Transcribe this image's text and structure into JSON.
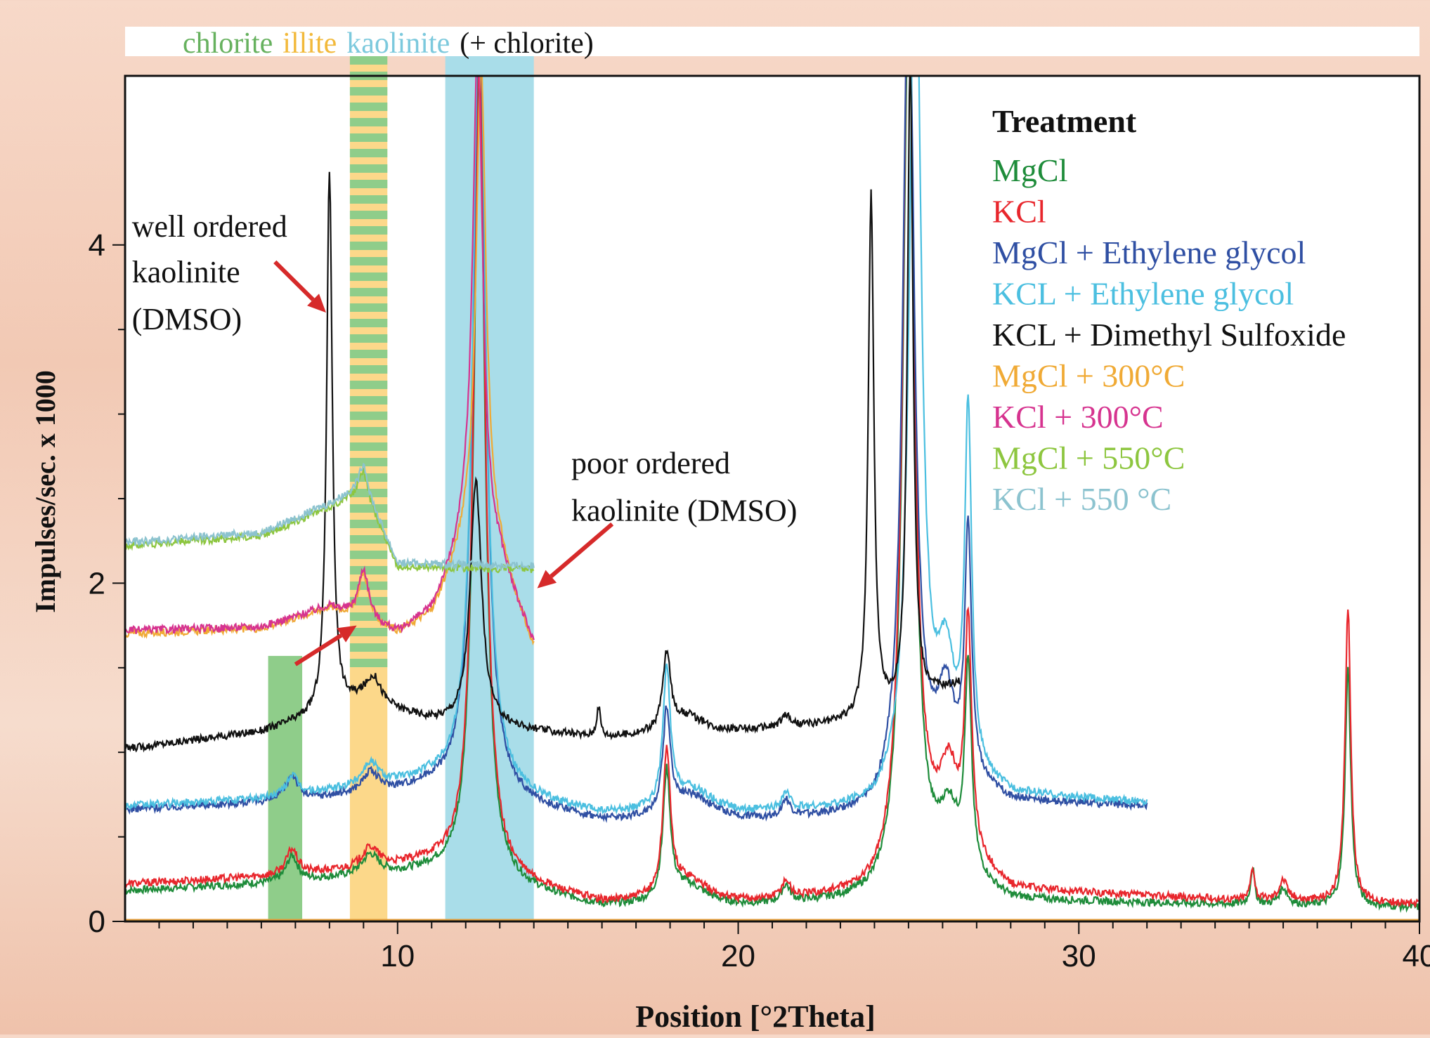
{
  "chart_data": {
    "type": "line",
    "title": "",
    "xlabel": "Position [°2Theta]",
    "ylabel": "Impulses/sec. x 1000",
    "xlim": [
      2,
      40
    ],
    "ylim": [
      0,
      5
    ],
    "x_ticks": [
      10,
      20,
      30,
      40
    ],
    "y_ticks": [
      0,
      2,
      4
    ],
    "grid": false,
    "legend_title": "Treatment",
    "legend_placement": "top-right",
    "mineral_bands": [
      {
        "name": "chlorite",
        "x_start": 6.2,
        "x_end": 7.2,
        "y_top": 1.57,
        "color": "#8fcd8a"
      },
      {
        "name": "illite",
        "x_start": 8.6,
        "x_end": 9.7,
        "y_top": 5.0,
        "color": "#fcd88a",
        "striped_with": "#8fcd8a"
      },
      {
        "name": "kaolinite",
        "x_start": 11.4,
        "x_end": 14.0,
        "y_top": 5.0,
        "color": "#a9dde9"
      }
    ],
    "header": [
      {
        "text": "chlorite",
        "color": "#66b15e"
      },
      {
        "text": "illite",
        "color": "#f2b93a"
      },
      {
        "text": "kaolinite",
        "color": "#7cc9dd"
      },
      {
        "text": "(+ chlorite)",
        "color": "#111111"
      }
    ],
    "annotations": [
      {
        "text": "well ordered",
        "x": 2.2,
        "y": 4.05
      },
      {
        "text": "kaolinite",
        "x": 2.2,
        "y": 3.78
      },
      {
        "text": "(DMSO)",
        "x": 2.2,
        "y": 3.5
      },
      {
        "text": "poor ordered",
        "x": 15.1,
        "y": 2.65
      },
      {
        "text": "kaolinite (DMSO)",
        "x": 15.1,
        "y": 2.37
      }
    ],
    "arrows": [
      {
        "from": [
          6.4,
          3.9
        ],
        "to": [
          7.9,
          3.6
        ]
      },
      {
        "from": [
          16.3,
          2.35
        ],
        "to": [
          14.1,
          1.97
        ]
      },
      {
        "from": [
          7.0,
          1.52
        ],
        "to": [
          8.8,
          1.75
        ]
      }
    ],
    "series": [
      {
        "name": "MgCl",
        "color": "#1e8c3a",
        "x_max": 40,
        "base": [
          [
            2,
            0.18
          ],
          [
            6,
            0.22
          ],
          [
            9,
            0.26
          ],
          [
            11,
            0.28
          ],
          [
            16,
            0.08
          ],
          [
            20,
            0.08
          ],
          [
            24,
            0.12
          ],
          [
            26,
            0.3
          ],
          [
            28,
            0.12
          ],
          [
            34,
            0.1
          ],
          [
            40,
            0.08
          ]
        ],
        "peaks": [
          [
            6.9,
            0.15,
            0.2
          ],
          [
            9.2,
            0.12,
            0.3
          ],
          [
            12.4,
            4.7,
            0.2
          ],
          [
            17.9,
            0.75,
            0.13
          ],
          [
            18.5,
            0.12,
            0.7
          ],
          [
            21.4,
            0.1,
            0.15
          ],
          [
            25.0,
            5.2,
            0.2
          ],
          [
            26.2,
            0.3,
            0.3
          ],
          [
            26.75,
            1.2,
            0.12
          ],
          [
            35.1,
            0.22,
            0.07
          ],
          [
            36.0,
            0.1,
            0.15
          ],
          [
            37.9,
            1.4,
            0.1
          ]
        ]
      },
      {
        "name": "KCl",
        "color": "#e8262c",
        "x_max": 40,
        "base": [
          [
            2,
            0.22
          ],
          [
            6,
            0.26
          ],
          [
            9,
            0.3
          ],
          [
            11,
            0.33
          ],
          [
            16,
            0.1
          ],
          [
            20,
            0.1
          ],
          [
            24,
            0.16
          ],
          [
            26,
            0.45
          ],
          [
            28,
            0.18
          ],
          [
            34,
            0.13
          ],
          [
            40,
            0.1
          ]
        ],
        "peaks": [
          [
            6.9,
            0.15,
            0.2
          ],
          [
            9.2,
            0.12,
            0.3
          ],
          [
            12.4,
            4.9,
            0.2
          ],
          [
            17.9,
            0.85,
            0.13
          ],
          [
            18.5,
            0.14,
            0.7
          ],
          [
            21.4,
            0.1,
            0.15
          ],
          [
            25.0,
            5.4,
            0.2
          ],
          [
            26.2,
            0.4,
            0.3
          ],
          [
            26.75,
            1.35,
            0.12
          ],
          [
            35.1,
            0.2,
            0.07
          ],
          [
            36.0,
            0.12,
            0.15
          ],
          [
            37.9,
            1.75,
            0.1
          ]
        ]
      },
      {
        "name": "MgCl + Ethylene glycol",
        "color": "#2f4fa3",
        "x_max": 32,
        "base": [
          [
            2,
            0.66
          ],
          [
            6,
            0.7
          ],
          [
            9,
            0.74
          ],
          [
            11,
            0.78
          ],
          [
            16,
            0.58
          ],
          [
            20,
            0.58
          ],
          [
            24,
            0.62
          ],
          [
            26,
            0.85
          ],
          [
            28,
            0.7
          ],
          [
            32,
            0.68
          ]
        ],
        "peaks": [
          [
            6.9,
            0.15,
            0.2
          ],
          [
            9.2,
            0.12,
            0.3
          ],
          [
            12.4,
            4.7,
            0.22
          ],
          [
            17.9,
            0.6,
            0.13
          ],
          [
            18.6,
            0.15,
            0.8
          ],
          [
            21.4,
            0.1,
            0.15
          ],
          [
            25.0,
            5.0,
            0.2
          ],
          [
            26.1,
            0.45,
            0.3
          ],
          [
            26.75,
            1.45,
            0.12
          ]
        ]
      },
      {
        "name": "KCL + Ethylene glycol",
        "color": "#4bbfe0",
        "x_max": 32,
        "base": [
          [
            2,
            0.68
          ],
          [
            6,
            0.72
          ],
          [
            9,
            0.78
          ],
          [
            11,
            0.82
          ],
          [
            16,
            0.62
          ],
          [
            20,
            0.62
          ],
          [
            24,
            0.66
          ],
          [
            26,
            0.9
          ],
          [
            28,
            0.74
          ],
          [
            32,
            0.7
          ]
        ],
        "peaks": [
          [
            6.9,
            0.12,
            0.2
          ],
          [
            9.2,
            0.14,
            0.3
          ],
          [
            12.4,
            4.8,
            0.22
          ],
          [
            17.9,
            0.8,
            0.13
          ],
          [
            18.6,
            0.15,
            0.8
          ],
          [
            21.4,
            0.1,
            0.15
          ],
          [
            25.2,
            5.3,
            0.2
          ],
          [
            26.1,
            0.55,
            0.3
          ],
          [
            26.75,
            2.1,
            0.12
          ]
        ]
      },
      {
        "name": "KCL + Dimethyl Sulfoxide",
        "color": "#111111",
        "x_max": 26.5,
        "base": [
          [
            2,
            1.02
          ],
          [
            6,
            1.12
          ],
          [
            7.5,
            1.2
          ],
          [
            9,
            1.3
          ],
          [
            11,
            1.18
          ],
          [
            16,
            1.08
          ],
          [
            20,
            1.12
          ],
          [
            24,
            1.18
          ],
          [
            26.5,
            1.4
          ]
        ],
        "peaks": [
          [
            8.0,
            3.2,
            0.1
          ],
          [
            9.3,
            0.15,
            0.25
          ],
          [
            12.3,
            1.45,
            0.2
          ],
          [
            15.9,
            0.18,
            0.07
          ],
          [
            17.9,
            0.45,
            0.14
          ],
          [
            18.5,
            0.1,
            0.6
          ],
          [
            21.4,
            0.07,
            0.15
          ],
          [
            23.9,
            3.1,
            0.1
          ],
          [
            25.05,
            3.8,
            0.1
          ]
        ]
      },
      {
        "name": "MgCl + 300°C",
        "color": "#f0aa35",
        "x_max": 14,
        "base": [
          [
            2,
            1.7
          ],
          [
            6,
            1.73
          ],
          [
            8,
            1.85
          ],
          [
            10,
            1.7
          ],
          [
            11,
            1.8
          ],
          [
            12,
            2.2
          ],
          [
            13,
            2.1
          ],
          [
            14,
            1.6
          ]
        ],
        "peaks": [
          [
            9.0,
            0.28,
            0.18
          ],
          [
            12.45,
            2.9,
            0.18
          ]
        ]
      },
      {
        "name": "KCl + 300°C",
        "color": "#d6338f",
        "x_max": 14,
        "base": [
          [
            2,
            1.72
          ],
          [
            6,
            1.74
          ],
          [
            8,
            1.86
          ],
          [
            10,
            1.7
          ],
          [
            11,
            1.82
          ],
          [
            12,
            2.22
          ],
          [
            13,
            2.1
          ],
          [
            14,
            1.62
          ]
        ],
        "peaks": [
          [
            9.0,
            0.3,
            0.18
          ],
          [
            12.35,
            3.0,
            0.18
          ]
        ]
      },
      {
        "name": "MgCl + 550°C",
        "color": "#8dc63f",
        "x_max": 14,
        "base": [
          [
            2,
            2.22
          ],
          [
            6,
            2.28
          ],
          [
            8,
            2.45
          ],
          [
            9,
            2.55
          ],
          [
            10,
            2.1
          ],
          [
            14,
            2.08
          ]
        ],
        "peaks": [
          [
            9.0,
            0.12,
            0.14
          ]
        ]
      },
      {
        "name": "KCl + 550 °C",
        "color": "#8cc3cf",
        "x_max": 14,
        "base": [
          [
            2,
            2.24
          ],
          [
            6,
            2.3
          ],
          [
            8,
            2.47
          ],
          [
            9,
            2.58
          ],
          [
            10,
            2.12
          ],
          [
            14,
            2.1
          ]
        ],
        "peaks": [
          [
            9.0,
            0.13,
            0.14
          ]
        ]
      }
    ]
  }
}
